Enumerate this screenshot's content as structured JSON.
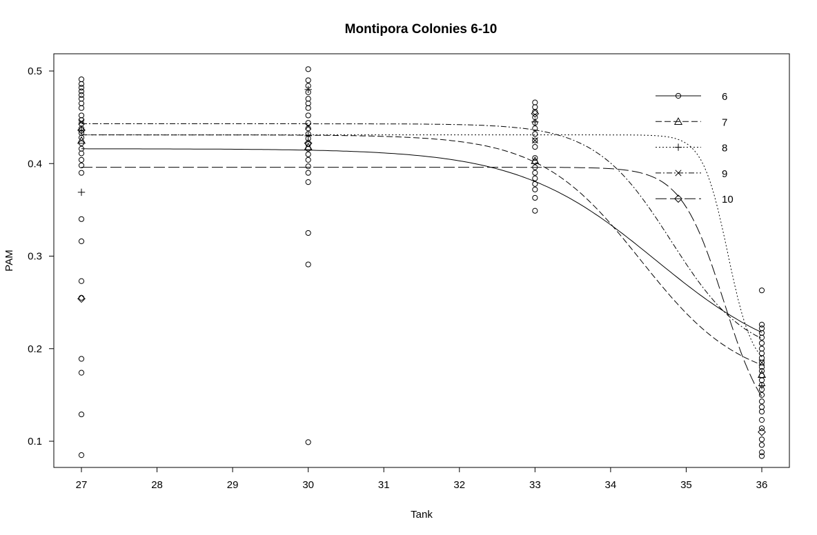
{
  "chart_data": {
    "type": "scatter",
    "title": "Montipora Colonies 6-10",
    "xlabel": "Tank",
    "ylabel": "PAM",
    "x_ticks": [
      "27",
      "28",
      "29",
      "30",
      "31",
      "32",
      "33",
      "34",
      "35",
      "36"
    ],
    "y_ticks": [
      "0.1",
      "0.2",
      "0.3",
      "0.4",
      "0.5"
    ],
    "xlim": [
      26.6,
      36.4
    ],
    "ylim": [
      0.07,
      0.52
    ],
    "legend_position": "top-right",
    "grid": false,
    "series": [
      {
        "name": "6",
        "marker": "circle",
        "dash": "",
        "curve": {
          "top": 0.416,
          "bottom": 0.175,
          "mid": 34.6,
          "rate": 1.1
        }
      },
      {
        "name": "7",
        "marker": "triangle",
        "dash": "9,4",
        "curve": {
          "top": 0.431,
          "bottom": 0.16,
          "mid": 34.4,
          "rate": 1.5
        }
      },
      {
        "name": "8",
        "marker": "plus",
        "dash": "2,3",
        "curve": {
          "top": 0.431,
          "bottom": 0.175,
          "mid": 35.55,
          "rate": 6.0
        }
      },
      {
        "name": "9",
        "marker": "x",
        "dash": "8,3,2,3",
        "curve": {
          "top": 0.443,
          "bottom": 0.19,
          "mid": 34.8,
          "rate": 2.0
        }
      },
      {
        "name": "10",
        "marker": "diamond",
        "dash": "16,5",
        "curve": {
          "top": 0.396,
          "bottom": 0.105,
          "mid": 35.5,
          "rate": 3.5
        }
      }
    ],
    "points": [
      {
        "x": 27,
        "y": 0.491,
        "m": "circle"
      },
      {
        "x": 27,
        "y": 0.486,
        "m": "circle"
      },
      {
        "x": 27,
        "y": 0.482,
        "m": "circle"
      },
      {
        "x": 27,
        "y": 0.478,
        "m": "circle"
      },
      {
        "x": 27,
        "y": 0.474,
        "m": "circle"
      },
      {
        "x": 27,
        "y": 0.47,
        "m": "circle"
      },
      {
        "x": 27,
        "y": 0.465,
        "m": "circle"
      },
      {
        "x": 27,
        "y": 0.46,
        "m": "circle"
      },
      {
        "x": 27,
        "y": 0.452,
        "m": "circle"
      },
      {
        "x": 27,
        "y": 0.447,
        "m": "circle"
      },
      {
        "x": 27,
        "y": 0.443,
        "m": "circle"
      },
      {
        "x": 27,
        "y": 0.438,
        "m": "circle"
      },
      {
        "x": 27,
        "y": 0.433,
        "m": "circle"
      },
      {
        "x": 27,
        "y": 0.428,
        "m": "circle"
      },
      {
        "x": 27,
        "y": 0.422,
        "m": "circle"
      },
      {
        "x": 27,
        "y": 0.416,
        "m": "circle"
      },
      {
        "x": 27,
        "y": 0.411,
        "m": "circle"
      },
      {
        "x": 27,
        "y": 0.404,
        "m": "circle"
      },
      {
        "x": 27,
        "y": 0.398,
        "m": "circle"
      },
      {
        "x": 27,
        "y": 0.39,
        "m": "circle"
      },
      {
        "x": 27,
        "y": 0.34,
        "m": "circle"
      },
      {
        "x": 27,
        "y": 0.316,
        "m": "circle"
      },
      {
        "x": 27,
        "y": 0.273,
        "m": "circle"
      },
      {
        "x": 27,
        "y": 0.255,
        "m": "circle"
      },
      {
        "x": 27,
        "y": 0.189,
        "m": "circle"
      },
      {
        "x": 27,
        "y": 0.174,
        "m": "circle"
      },
      {
        "x": 27,
        "y": 0.129,
        "m": "circle"
      },
      {
        "x": 27,
        "y": 0.085,
        "m": "circle"
      },
      {
        "x": 27,
        "y": 0.369,
        "m": "plus"
      },
      {
        "x": 27,
        "y": 0.436,
        "m": "plus"
      },
      {
        "x": 27,
        "y": 0.445,
        "m": "x"
      },
      {
        "x": 27,
        "y": 0.254,
        "m": "diamond"
      },
      {
        "x": 27,
        "y": 0.436,
        "m": "diamond"
      },
      {
        "x": 27,
        "y": 0.425,
        "m": "triangle"
      },
      {
        "x": 30,
        "y": 0.502,
        "m": "circle"
      },
      {
        "x": 30,
        "y": 0.49,
        "m": "circle"
      },
      {
        "x": 30,
        "y": 0.484,
        "m": "circle"
      },
      {
        "x": 30,
        "y": 0.477,
        "m": "circle"
      },
      {
        "x": 30,
        "y": 0.47,
        "m": "circle"
      },
      {
        "x": 30,
        "y": 0.465,
        "m": "circle"
      },
      {
        "x": 30,
        "y": 0.46,
        "m": "circle"
      },
      {
        "x": 30,
        "y": 0.452,
        "m": "circle"
      },
      {
        "x": 30,
        "y": 0.444,
        "m": "circle"
      },
      {
        "x": 30,
        "y": 0.438,
        "m": "circle"
      },
      {
        "x": 30,
        "y": 0.432,
        "m": "circle"
      },
      {
        "x": 30,
        "y": 0.427,
        "m": "circle"
      },
      {
        "x": 30,
        "y": 0.421,
        "m": "circle"
      },
      {
        "x": 30,
        "y": 0.416,
        "m": "circle"
      },
      {
        "x": 30,
        "y": 0.41,
        "m": "circle"
      },
      {
        "x": 30,
        "y": 0.404,
        "m": "circle"
      },
      {
        "x": 30,
        "y": 0.397,
        "m": "circle"
      },
      {
        "x": 30,
        "y": 0.39,
        "m": "circle"
      },
      {
        "x": 30,
        "y": 0.38,
        "m": "circle"
      },
      {
        "x": 30,
        "y": 0.325,
        "m": "circle"
      },
      {
        "x": 30,
        "y": 0.291,
        "m": "circle"
      },
      {
        "x": 30,
        "y": 0.099,
        "m": "circle"
      },
      {
        "x": 30,
        "y": 0.48,
        "m": "plus"
      },
      {
        "x": 30,
        "y": 0.43,
        "m": "plus"
      },
      {
        "x": 30,
        "y": 0.418,
        "m": "triangle"
      },
      {
        "x": 30,
        "y": 0.44,
        "m": "x"
      },
      {
        "x": 30,
        "y": 0.422,
        "m": "diamond"
      },
      {
        "x": 33,
        "y": 0.466,
        "m": "circle"
      },
      {
        "x": 33,
        "y": 0.461,
        "m": "circle"
      },
      {
        "x": 33,
        "y": 0.456,
        "m": "circle"
      },
      {
        "x": 33,
        "y": 0.45,
        "m": "circle"
      },
      {
        "x": 33,
        "y": 0.444,
        "m": "circle"
      },
      {
        "x": 33,
        "y": 0.438,
        "m": "circle"
      },
      {
        "x": 33,
        "y": 0.432,
        "m": "circle"
      },
      {
        "x": 33,
        "y": 0.425,
        "m": "circle"
      },
      {
        "x": 33,
        "y": 0.418,
        "m": "circle"
      },
      {
        "x": 33,
        "y": 0.406,
        "m": "circle"
      },
      {
        "x": 33,
        "y": 0.402,
        "m": "circle"
      },
      {
        "x": 33,
        "y": 0.396,
        "m": "circle"
      },
      {
        "x": 33,
        "y": 0.39,
        "m": "circle"
      },
      {
        "x": 33,
        "y": 0.384,
        "m": "circle"
      },
      {
        "x": 33,
        "y": 0.378,
        "m": "circle"
      },
      {
        "x": 33,
        "y": 0.372,
        "m": "circle"
      },
      {
        "x": 33,
        "y": 0.363,
        "m": "circle"
      },
      {
        "x": 33,
        "y": 0.349,
        "m": "circle"
      },
      {
        "x": 33,
        "y": 0.445,
        "m": "plus"
      },
      {
        "x": 33,
        "y": 0.454,
        "m": "diamond"
      },
      {
        "x": 33,
        "y": 0.403,
        "m": "triangle"
      },
      {
        "x": 33,
        "y": 0.425,
        "m": "x"
      },
      {
        "x": 36,
        "y": 0.263,
        "m": "circle"
      },
      {
        "x": 36,
        "y": 0.226,
        "m": "circle"
      },
      {
        "x": 36,
        "y": 0.222,
        "m": "circle"
      },
      {
        "x": 36,
        "y": 0.217,
        "m": "circle"
      },
      {
        "x": 36,
        "y": 0.212,
        "m": "circle"
      },
      {
        "x": 36,
        "y": 0.206,
        "m": "circle"
      },
      {
        "x": 36,
        "y": 0.2,
        "m": "circle"
      },
      {
        "x": 36,
        "y": 0.195,
        "m": "circle"
      },
      {
        "x": 36,
        "y": 0.19,
        "m": "circle"
      },
      {
        "x": 36,
        "y": 0.185,
        "m": "circle"
      },
      {
        "x": 36,
        "y": 0.18,
        "m": "circle"
      },
      {
        "x": 36,
        "y": 0.176,
        "m": "circle"
      },
      {
        "x": 36,
        "y": 0.171,
        "m": "circle"
      },
      {
        "x": 36,
        "y": 0.166,
        "m": "circle"
      },
      {
        "x": 36,
        "y": 0.161,
        "m": "circle"
      },
      {
        "x": 36,
        "y": 0.156,
        "m": "circle"
      },
      {
        "x": 36,
        "y": 0.15,
        "m": "circle"
      },
      {
        "x": 36,
        "y": 0.143,
        "m": "circle"
      },
      {
        "x": 36,
        "y": 0.137,
        "m": "circle"
      },
      {
        "x": 36,
        "y": 0.132,
        "m": "circle"
      },
      {
        "x": 36,
        "y": 0.123,
        "m": "circle"
      },
      {
        "x": 36,
        "y": 0.114,
        "m": "circle"
      },
      {
        "x": 36,
        "y": 0.102,
        "m": "circle"
      },
      {
        "x": 36,
        "y": 0.096,
        "m": "circle"
      },
      {
        "x": 36,
        "y": 0.088,
        "m": "circle"
      },
      {
        "x": 36,
        "y": 0.084,
        "m": "circle"
      },
      {
        "x": 36,
        "y": 0.11,
        "m": "diamond"
      },
      {
        "x": 36,
        "y": 0.172,
        "m": "triangle"
      },
      {
        "x": 36,
        "y": 0.16,
        "m": "plus"
      },
      {
        "x": 36,
        "y": 0.185,
        "m": "x"
      }
    ]
  }
}
